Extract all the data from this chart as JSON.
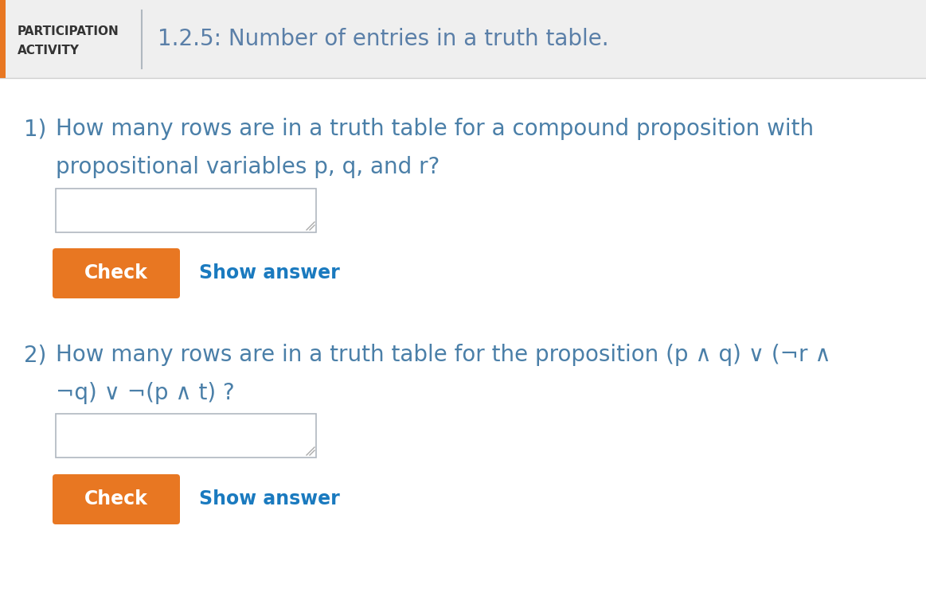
{
  "header_bg": "#efefef",
  "header_label_text1": "PARTICIPATION",
  "header_label_text2": "ACTIVITY",
  "header_title": "1.2.5: Number of entries in a truth table.",
  "header_label_color": "#333333",
  "header_title_color": "#5a7fa8",
  "orange_bar_color": "#e87722",
  "divider_color": "#b0b8c0",
  "q1_number": "1)",
  "q1_line1": "How many rows are in a truth table for a compound proposition with",
  "q1_line2": "propositional variables p, q, and r?",
  "q2_number": "2)",
  "q2_line1": "How many rows are in a truth table for the proposition (p ∧ q) ∨ (¬r ∧",
  "q2_line2": "¬q) ∨ ¬(p ∧ t) ?",
  "question_color": "#4a7fa8",
  "check_button_color": "#e87722",
  "check_text": "Check",
  "show_answer_text": "Show answer",
  "show_answer_color": "#1a7abf",
  "input_box_border": "#b0b8c0",
  "background_color": "#ffffff",
  "fig_width": 11.63,
  "fig_height": 7.44,
  "dpi": 100
}
